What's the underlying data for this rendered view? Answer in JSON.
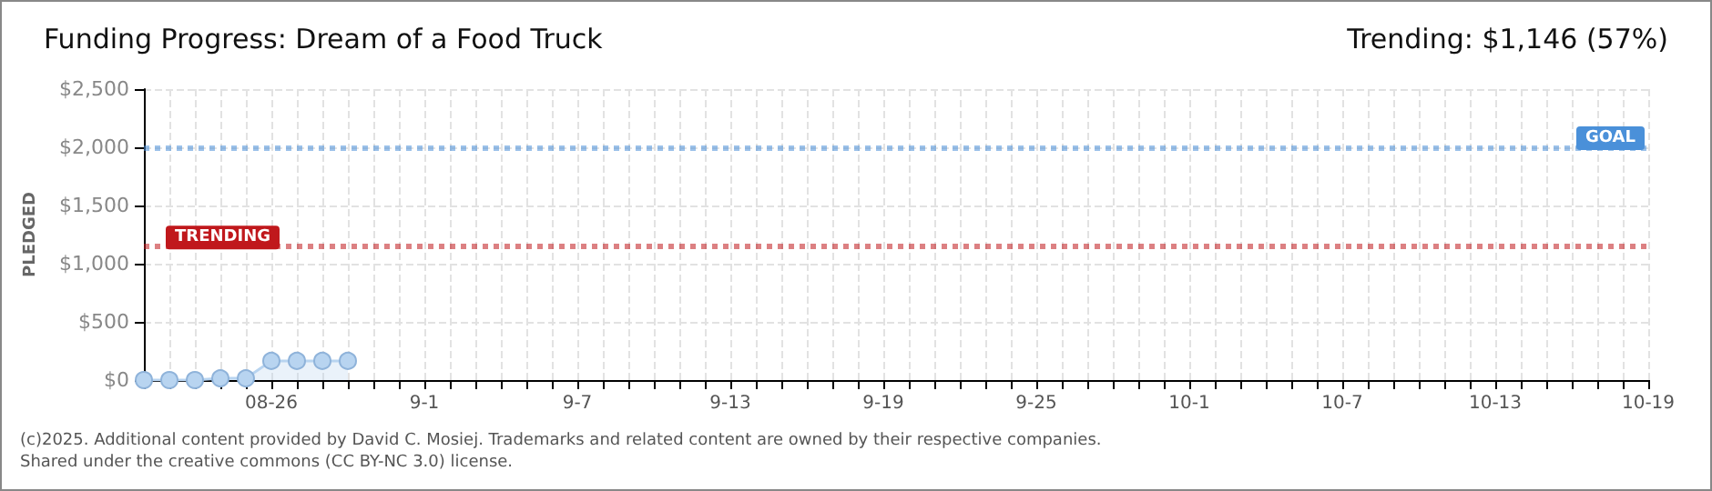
{
  "chart_data": {
    "type": "area",
    "title": "Funding Progress: Dream of a Food Truck",
    "subtitle": "Trending: $1,146 (57%)",
    "ylabel": "PLEDGED",
    "x": [
      "--08-21",
      "--08-22",
      "--08-23",
      "--08-24",
      "--08-25",
      "--08-26",
      "--08-27",
      "--08-28",
      "--08-29"
    ],
    "series": [
      {
        "color": "#b8d4f0",
        "values": [
          0,
          0,
          0,
          15,
          15,
          165,
          165,
          165,
          165
        ]
      }
    ],
    "marker": "circle",
    "grid": true,
    "xlim": [
      "--08-21",
      "--10-19"
    ],
    "xticks": [
      {
        "value": "--08-21",
        "label": null
      },
      {
        "value": "--08-22",
        "label": null
      },
      {
        "value": "--08-23",
        "label": null
      },
      {
        "value": "--08-24",
        "label": null
      },
      {
        "value": "--08-25",
        "label": null
      },
      {
        "value": "--08-26",
        "label": "08-26"
      },
      {
        "value": "--08-27",
        "label": null
      },
      {
        "value": "--08-28",
        "label": null
      },
      {
        "value": "--08-29",
        "label": null
      },
      {
        "value": "--08-30",
        "label": null
      },
      {
        "value": "--08-31",
        "label": null
      },
      {
        "value": "--09-01",
        "label": "9-1"
      },
      {
        "value": "--09-02",
        "label": null
      },
      {
        "value": "--09-03",
        "label": null
      },
      {
        "value": "--09-04",
        "label": null
      },
      {
        "value": "--09-05",
        "label": null
      },
      {
        "value": "--09-06",
        "label": null
      },
      {
        "value": "--09-07",
        "label": "9-7"
      },
      {
        "value": "--09-08",
        "label": null
      },
      {
        "value": "--09-09",
        "label": null
      },
      {
        "value": "--09-10",
        "label": null
      },
      {
        "value": "--09-11",
        "label": null
      },
      {
        "value": "--09-12",
        "label": null
      },
      {
        "value": "--09-13",
        "label": "9-13"
      },
      {
        "value": "--09-14",
        "label": null
      },
      {
        "value": "--09-15",
        "label": null
      },
      {
        "value": "--09-16",
        "label": null
      },
      {
        "value": "--09-17",
        "label": null
      },
      {
        "value": "--09-18",
        "label": null
      },
      {
        "value": "--09-19",
        "label": "9-19"
      },
      {
        "value": "--09-20",
        "label": null
      },
      {
        "value": "--09-21",
        "label": null
      },
      {
        "value": "--09-22",
        "label": null
      },
      {
        "value": "--09-23",
        "label": null
      },
      {
        "value": "--09-24",
        "label": null
      },
      {
        "value": "--09-25",
        "label": "9-25"
      },
      {
        "value": "--09-26",
        "label": null
      },
      {
        "value": "--09-27",
        "label": null
      },
      {
        "value": "--09-28",
        "label": null
      },
      {
        "value": "--09-29",
        "label": null
      },
      {
        "value": "--09-30",
        "label": null
      },
      {
        "value": "--10-01",
        "label": "10-1"
      },
      {
        "value": "--10-02",
        "label": null
      },
      {
        "value": "--10-03",
        "label": null
      },
      {
        "value": "--10-04",
        "label": null
      },
      {
        "value": "--10-05",
        "label": null
      },
      {
        "value": "--10-06",
        "label": null
      },
      {
        "value": "--10-07",
        "label": "10-7"
      },
      {
        "value": "--10-08",
        "label": null
      },
      {
        "value": "--10-09",
        "label": null
      },
      {
        "value": "--10-10",
        "label": null
      },
      {
        "value": "--10-11",
        "label": null
      },
      {
        "value": "--10-12",
        "label": null
      },
      {
        "value": "--10-13",
        "label": "10-13"
      },
      {
        "value": "--10-14",
        "label": null
      },
      {
        "value": "--10-15",
        "label": null
      },
      {
        "value": "--10-16",
        "label": null
      },
      {
        "value": "--10-17",
        "label": null
      },
      {
        "value": "--10-18",
        "label": null
      },
      {
        "value": "--10-19",
        "label": "10-19"
      }
    ],
    "ylim": [
      0,
      2500
    ],
    "yticks": [
      {
        "value": 0,
        "label": "$0"
      },
      {
        "value": 500,
        "label": "$500"
      },
      {
        "value": 1000,
        "label": "$1,000"
      },
      {
        "value": 1500,
        "label": "$1,500"
      },
      {
        "value": 2000,
        "label": "$2,000"
      },
      {
        "value": 2500,
        "label": "$2,500"
      }
    ],
    "ref_lines": [
      {
        "axis": "y",
        "value": 2000,
        "label": "GOAL",
        "color": "#4a90d9",
        "line_style": "dotted"
      },
      {
        "axis": "y",
        "value": 1146,
        "label": "TRENDING",
        "color": "#c0181c",
        "line_style": "dotted"
      }
    ],
    "annotations": [
      "(c)2025. Additional content provided by David C. Mosiej. Trademarks and related content are owned by their respective companies.",
      "Shared under the creative commons (CC BY-NC 3.0) license."
    ]
  }
}
